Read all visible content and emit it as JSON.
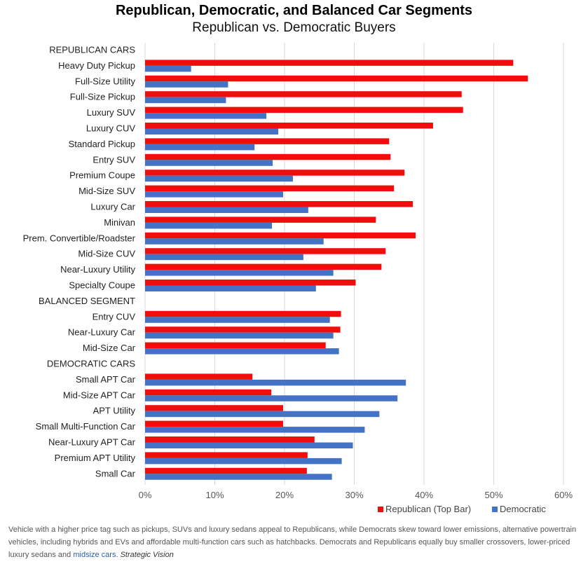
{
  "chart_data": {
    "type": "bar",
    "orientation": "horizontal",
    "title": "Republican, Democratic, and Balanced Car Segments",
    "subtitle": "Republican vs. Democratic Buyers",
    "xlim": [
      0,
      60
    ],
    "x_ticks": [
      "0%",
      "10%",
      "20%",
      "30%",
      "40%",
      "50%",
      "60%"
    ],
    "grid": "vertical",
    "legend_position": "bottom-right",
    "colors": {
      "republican": "#f20d0d",
      "democratic": "#4472c4",
      "grid": "#d9d9d9"
    },
    "series": [
      {
        "name": "Republican (Top Bar)",
        "key": "rep"
      },
      {
        "name": "Democratic",
        "key": "dem"
      }
    ],
    "rows": [
      {
        "label": "REPUBLICAN CARS",
        "header": true
      },
      {
        "label": "Heavy Duty Pickup",
        "rep": 52.8,
        "dem": 6.6
      },
      {
        "label": "Full-Size Utility",
        "rep": 54.9,
        "dem": 11.9
      },
      {
        "label": "Full-Size Pickup",
        "rep": 45.4,
        "dem": 11.6
      },
      {
        "label": "Luxury SUV",
        "rep": 45.6,
        "dem": 17.4
      },
      {
        "label": "Luxury CUV",
        "rep": 41.3,
        "dem": 19.1
      },
      {
        "label": "Standard Pickup",
        "rep": 35.0,
        "dem": 15.7
      },
      {
        "label": "Entry SUV",
        "rep": 35.2,
        "dem": 18.3
      },
      {
        "label": "Premium Coupe",
        "rep": 37.2,
        "dem": 21.2
      },
      {
        "label": "Mid-Size SUV",
        "rep": 35.7,
        "dem": 19.8
      },
      {
        "label": "Luxury Car",
        "rep": 38.4,
        "dem": 23.4
      },
      {
        "label": "Minivan",
        "rep": 33.1,
        "dem": 18.2
      },
      {
        "label": "Prem. Convertible/Roadster",
        "rep": 38.8,
        "dem": 25.6
      },
      {
        "label": "Mid-Size CUV",
        "rep": 34.5,
        "dem": 22.7
      },
      {
        "label": "Near-Luxury Utility",
        "rep": 33.9,
        "dem": 27.0
      },
      {
        "label": "Specialty Coupe",
        "rep": 30.2,
        "dem": 24.5
      },
      {
        "label": "BALANCED SEGMENT",
        "header": true
      },
      {
        "label": "Entry CUV",
        "rep": 28.1,
        "dem": 26.5
      },
      {
        "label": "Near-Luxury Car",
        "rep": 28.0,
        "dem": 27.0
      },
      {
        "label": "Mid-Size Car",
        "rep": 25.9,
        "dem": 27.8
      },
      {
        "label": "DEMOCRATIC CARS",
        "header": true
      },
      {
        "label": "Small APT Car",
        "rep": 15.4,
        "dem": 37.4
      },
      {
        "label": "Mid-Size APT Car",
        "rep": 18.1,
        "dem": 36.2
      },
      {
        "label": "APT Utility",
        "rep": 19.8,
        "dem": 33.6
      },
      {
        "label": "Small Multi-Function Car",
        "rep": 19.8,
        "dem": 31.5
      },
      {
        "label": "Near-Luxury APT Car",
        "rep": 24.3,
        "dem": 29.8
      },
      {
        "label": "Premium APT Utility",
        "rep": 23.3,
        "dem": 28.2
      },
      {
        "label": "Small Car",
        "rep": 23.2,
        "dem": 26.8
      }
    ]
  },
  "caption": {
    "text_before": "Vehicle with a higher price tag such as pickups, SUVs and luxury sedans appeal to Republicans, while Democrats skew toward lower emissions, alternative powertrain vehicles, including hybrids and EVs and affordable multi-function cars such as hatchbacks. Democrats and Republicans equally buy smaller crossovers, lower-priced luxury sedans and ",
    "link_text": "midsize cars",
    "text_after": ".",
    "source": "Strategic Vision"
  }
}
